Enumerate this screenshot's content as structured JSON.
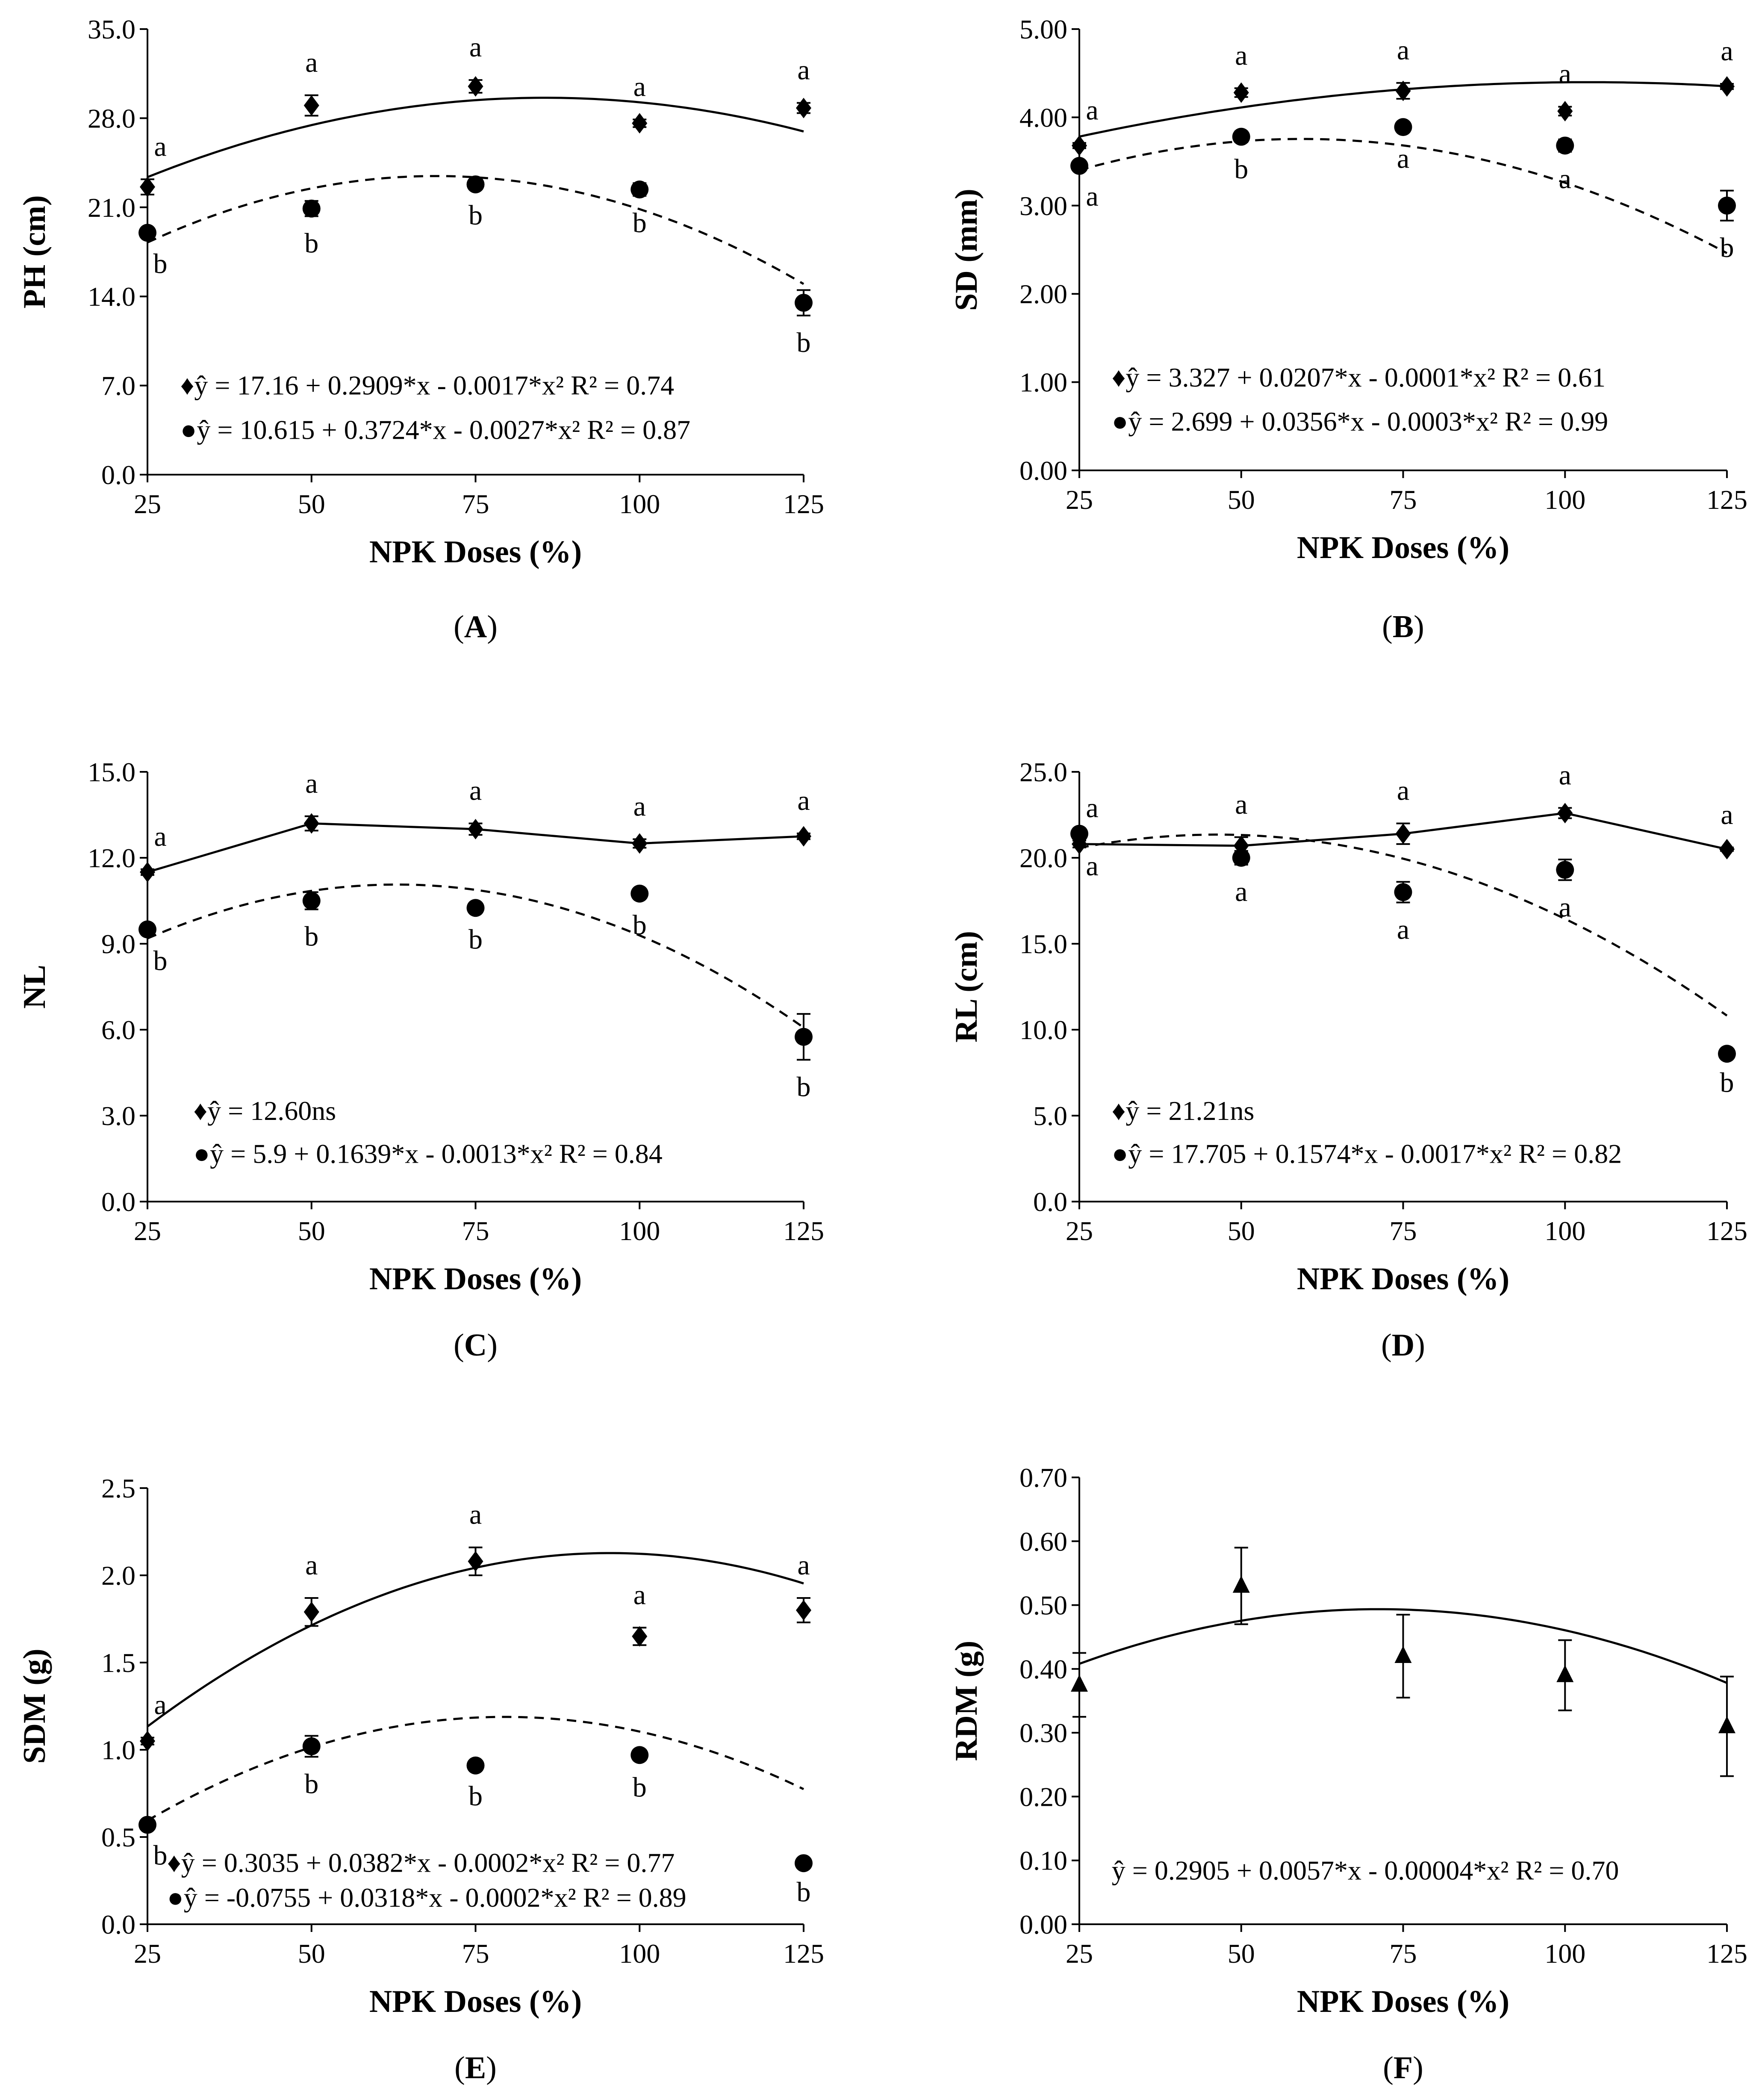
{
  "chart_data": [
    {
      "panel": "(A)",
      "panel_letter": "A",
      "type": "scatter",
      "xlabel": "NPK Doses (%)",
      "ylabel": "PH (cm)",
      "xticks": [
        "25",
        "50",
        "75",
        "100",
        "125"
      ],
      "yticks": [
        "0.0",
        "7.0",
        "14.0",
        "21.0",
        "28.0",
        "35.0"
      ],
      "xlim": [
        25,
        125
      ],
      "ylim": [
        0,
        35
      ],
      "x": [
        25,
        50,
        75,
        100,
        125
      ],
      "series": [
        {
          "marker": "diamond",
          "line": "solid",
          "values": [
            22.6,
            29.0,
            30.5,
            27.6,
            28.8
          ],
          "errors": [
            0.6,
            0.8,
            0.5,
            0.3,
            0.4
          ],
          "letters": [
            "a",
            "a",
            "a",
            "a",
            "a"
          ],
          "fit": [
            17.16,
            0.2909,
            -0.0017
          ],
          "equation": "♦ŷ = 17.16 + 0.2909*x - 0.0017*x² R² = 0.74"
        },
        {
          "marker": "circle",
          "line": "dashed",
          "values": [
            19.0,
            20.9,
            22.8,
            22.4,
            13.5
          ],
          "errors": [
            0.3,
            0.6,
            0.3,
            0.5,
            1.0
          ],
          "letters": [
            "b",
            "b",
            "b",
            "b",
            "b"
          ],
          "fit": [
            10.615,
            0.3724,
            -0.0027
          ],
          "equation": "●ŷ = 10.615 + 0.3724*x - 0.0027*x² R² = 0.87"
        }
      ]
    },
    {
      "panel": "(B)",
      "panel_letter": "B",
      "type": "scatter",
      "xlabel": "NPK Doses (%)",
      "ylabel": "SD (mm)",
      "xticks": [
        "25",
        "50",
        "75",
        "100",
        "125"
      ],
      "yticks": [
        "0.00",
        "1.00",
        "2.00",
        "3.00",
        "4.00",
        "5.00"
      ],
      "xlim": [
        25,
        125
      ],
      "ylim": [
        0,
        5
      ],
      "x": [
        25,
        50,
        75,
        100,
        125
      ],
      "series": [
        {
          "marker": "diamond",
          "line": "solid",
          "values": [
            3.68,
            4.28,
            4.3,
            4.07,
            4.35
          ],
          "errors": [
            0.03,
            0.05,
            0.09,
            0.05,
            0.03
          ],
          "letters": [
            "a",
            "a",
            "a",
            "a",
            "a"
          ],
          "fit": [
            3.327,
            0.0207,
            -0.0001
          ],
          "equation": "♦ŷ = 3.327 + 0.0207*x - 0.0001*x² R² = 0.61"
        },
        {
          "marker": "circle",
          "line": "dashed",
          "values": [
            3.45,
            3.78,
            3.89,
            3.68,
            3.0
          ],
          "errors": [
            0.04,
            0.06,
            0.05,
            0.07,
            0.17
          ],
          "letters": [
            "a",
            "b",
            "a",
            "a",
            "b"
          ],
          "fit": [
            2.699,
            0.0356,
            -0.0003
          ],
          "equation": "●ŷ = 2.699 + 0.0356*x - 0.0003*x² R² = 0.99"
        }
      ]
    },
    {
      "panel": "(C)",
      "panel_letter": "C",
      "type": "scatter",
      "xlabel": "NPK Doses (%)",
      "ylabel": "NL",
      "xticks": [
        "25",
        "50",
        "75",
        "100",
        "125"
      ],
      "yticks": [
        "0.0",
        "3.0",
        "6.0",
        "9.0",
        "12.0",
        "15.0"
      ],
      "xlim": [
        25,
        125
      ],
      "ylim": [
        0,
        15
      ],
      "x": [
        25,
        50,
        75,
        100,
        125
      ],
      "series": [
        {
          "marker": "diamond",
          "line": "solid",
          "connect": true,
          "values": [
            11.5,
            13.2,
            13.0,
            12.5,
            12.75
          ],
          "errors": [
            0.1,
            0.25,
            0.2,
            0.15,
            0.1
          ],
          "letters": [
            "a",
            "a",
            "a",
            "a",
            "a"
          ],
          "equation": "♦ŷ = 12.60ns"
        },
        {
          "marker": "circle",
          "line": "dashed",
          "values": [
            9.5,
            10.5,
            10.25,
            10.75,
            5.75
          ],
          "errors": [
            0.15,
            0.3,
            0.15,
            0.15,
            0.8
          ],
          "letters": [
            "b",
            "b",
            "b",
            "b",
            "b"
          ],
          "fit": [
            5.9,
            0.1639,
            -0.0013
          ],
          "equation": "●ŷ = 5.9 + 0.1639*x - 0.0013*x² R² = 0.84"
        }
      ]
    },
    {
      "panel": "(D)",
      "panel_letter": "D",
      "type": "scatter",
      "xlabel": "NPK Doses (%)",
      "ylabel": "RL (cm)",
      "xticks": [
        "25",
        "50",
        "75",
        "100",
        "125"
      ],
      "yticks": [
        "0.0",
        "5.0",
        "10.0",
        "15.0",
        "20.0",
        "25.0"
      ],
      "xlim": [
        25,
        125
      ],
      "ylim": [
        0,
        25
      ],
      "x": [
        25,
        50,
        75,
        100,
        125
      ],
      "series": [
        {
          "marker": "diamond",
          "line": "solid",
          "connect": true,
          "values": [
            20.8,
            20.7,
            21.4,
            22.6,
            20.5
          ],
          "errors": [
            0.2,
            0.5,
            0.6,
            0.3,
            0.1
          ],
          "letters": [
            "a",
            "a",
            "a",
            "a",
            "a"
          ],
          "equation": "♦ŷ = 21.21ns"
        },
        {
          "marker": "circle",
          "line": "dashed",
          "values": [
            21.4,
            20.0,
            18.0,
            19.3,
            8.6
          ],
          "errors": [
            0.3,
            0.4,
            0.6,
            0.6,
            0.1
          ],
          "letters": [
            "a",
            "a",
            "a",
            "a",
            "b"
          ],
          "fit": [
            17.705,
            0.1574,
            -0.0017
          ],
          "equation": "●ŷ = 17.705 + 0.1574*x - 0.0017*x² R² = 0.82"
        }
      ]
    },
    {
      "panel": "(E)",
      "panel_letter": "E",
      "type": "scatter",
      "xlabel": "NPK Doses (%)",
      "ylabel": "SDM (g)",
      "xticks": [
        "25",
        "50",
        "75",
        "100",
        "125"
      ],
      "yticks": [
        "0.0",
        "0.5",
        "1.0",
        "1.5",
        "2.0",
        "2.5"
      ],
      "xlim": [
        25,
        125
      ],
      "ylim": [
        0,
        2.5
      ],
      "x": [
        25,
        50,
        75,
        100,
        125
      ],
      "series": [
        {
          "marker": "diamond",
          "line": "solid",
          "values": [
            1.05,
            1.79,
            2.08,
            1.65,
            1.8
          ],
          "errors": [
            0.02,
            0.08,
            0.08,
            0.05,
            0.07
          ],
          "letters": [
            "a",
            "a",
            "a",
            "a",
            "a"
          ],
          "fit": [
            0.3035,
            0.0382,
            -0.0002
          ],
          "equation": "♦ŷ = 0.3035 + 0.0382*x - 0.0002*x² R² = 0.77"
        },
        {
          "marker": "circle",
          "line": "dashed",
          "values": [
            0.57,
            1.02,
            0.91,
            0.97,
            0.35
          ],
          "errors": [
            0.02,
            0.06,
            0.02,
            0.03,
            0.01
          ],
          "letters": [
            "b",
            "b",
            "b",
            "b",
            "b"
          ],
          "fit": [
            -0.0755,
            0.0318,
            -0.0002
          ],
          "equation": "●ŷ = -0.0755 + 0.0318*x - 0.0002*x² R² = 0.89"
        }
      ]
    },
    {
      "panel": "(F)",
      "panel_letter": "F",
      "type": "scatter",
      "xlabel": "NPK Doses (%)",
      "ylabel": "RDM (g)",
      "xticks": [
        "25",
        "50",
        "75",
        "100",
        "125"
      ],
      "yticks": [
        "0.00",
        "0.10",
        "0.20",
        "0.30",
        "0.40",
        "0.50",
        "0.60",
        "0.70"
      ],
      "xlim": [
        25,
        125
      ],
      "ylim": [
        0,
        0.7
      ],
      "x": [
        25,
        50,
        75,
        100,
        125
      ],
      "series": [
        {
          "marker": "triangle",
          "line": "solid",
          "values": [
            0.375,
            0.53,
            0.42,
            0.39,
            0.31
          ],
          "errors": [
            0.05,
            0.06,
            0.065,
            0.055,
            0.078
          ],
          "letters": [],
          "fit": [
            0.2905,
            0.0057,
            -4e-05
          ],
          "equation": "ŷ = 0.2905 + 0.0057*x - 0.00004*x² R² = 0.70"
        }
      ]
    }
  ]
}
